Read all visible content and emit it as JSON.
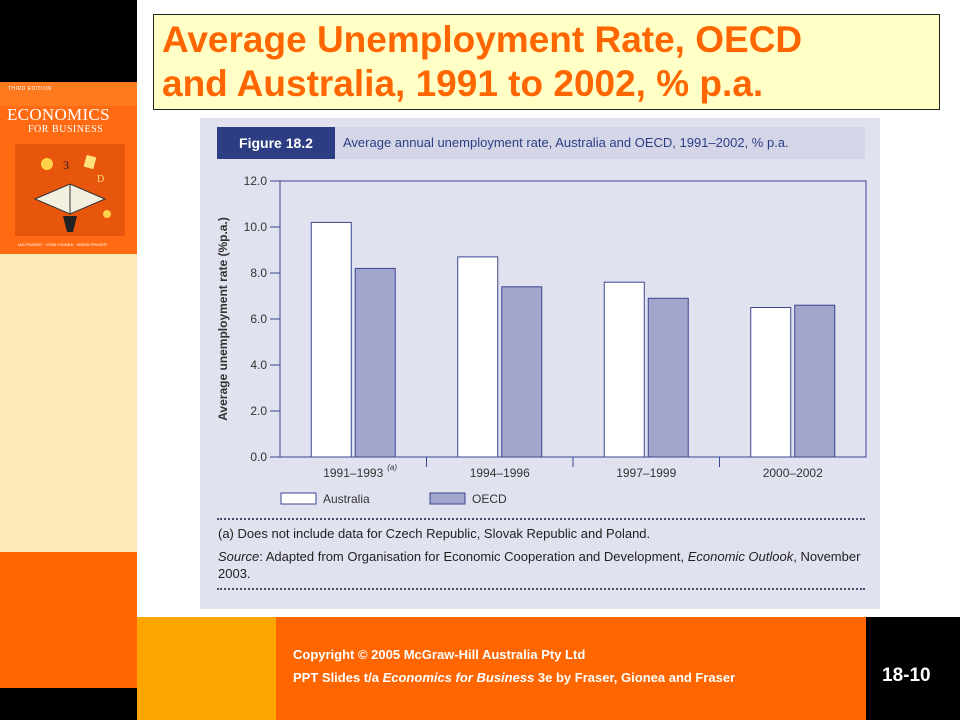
{
  "slide": {
    "title": "Average Unemployment Rate, OECD\nand Australia, 1991 to 2002, % p.a.",
    "copyright": "Copyright © 2005 McGraw-Hill Australia Pty Ltd",
    "ppt_prefix": "PPT Slides t/a ",
    "ppt_book": "Economics for Business",
    "ppt_suffix": " 3e by Fraser, Gionea and Fraser",
    "slide_number": "18-10"
  },
  "book_cover": {
    "edition": "THIRD EDITION",
    "title_line1": "ECONOMICS",
    "title_line2": "FOR BUSINESS",
    "authors": "IAN FRASER · JOHN GIONEA · SIMON FRASER"
  },
  "figure": {
    "label": "Figure 18.2",
    "caption": "Average annual unemployment rate, Australia and OECD, 1991–2002, % p.a.",
    "footnote": "(a) Does not include data for Czech Republic, Slovak Republic and Poland.",
    "source_label": "Source",
    "source_text_1": ": Adapted from Organisation for Economic Cooperation and Development, ",
    "source_em": "Economic Outlook",
    "source_text_2": ", November 2003."
  },
  "chart_data": {
    "type": "bar",
    "title": "",
    "xlabel": "",
    "ylabel": "Average unemployment rate (%p.a.)",
    "categories": [
      "1991–1993",
      "1994–1996",
      "1997–1999",
      "2000–2002"
    ],
    "category_superscripts": [
      "(a)",
      "",
      "",
      ""
    ],
    "series": [
      {
        "name": "Australia",
        "values": [
          10.2,
          8.7,
          7.6,
          6.5
        ],
        "color": "#ffffff"
      },
      {
        "name": "OECD",
        "values": [
          8.2,
          7.4,
          6.9,
          6.6
        ],
        "color": "#a2a6cc"
      }
    ],
    "yticks": [
      "0.0",
      "2.0",
      "4.0",
      "6.0",
      "8.0",
      "10.0",
      "12.0"
    ],
    "ylim": [
      0,
      12
    ],
    "grid": false,
    "legend": "bottom-left"
  },
  "colors": {
    "title_text": "#ff6600",
    "title_bg": "#ffffc6",
    "figure_bg": "#e1e2f0",
    "figure_label_bg": "#2d3d84",
    "axis": "#3a4690"
  }
}
